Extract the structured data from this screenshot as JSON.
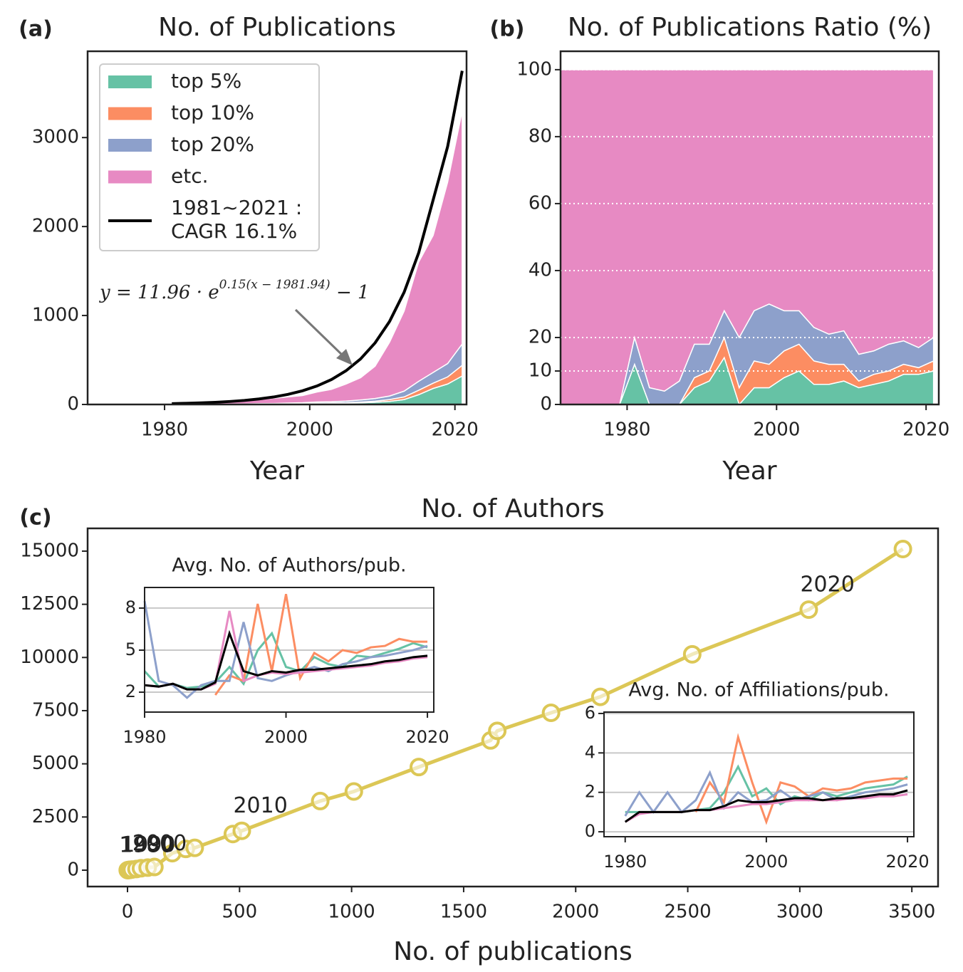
{
  "chart_data": [
    {
      "type": "area",
      "panel_label": "(a)",
      "title": "No. of Publications",
      "xlabel": "Year",
      "x": [
        1981,
        1983,
        1985,
        1987,
        1989,
        1991,
        1993,
        1995,
        1997,
        1999,
        2001,
        2003,
        2005,
        2007,
        2009,
        2011,
        2013,
        2015,
        2017,
        2019,
        2021
      ],
      "series": [
        {
          "name": "top 5%",
          "color": "#66c2a5",
          "values": [
            1,
            0,
            0,
            0,
            1,
            2,
            5,
            2,
            4,
            5,
            8,
            11,
            14,
            18,
            25,
            35,
            55,
            110,
            180,
            230,
            320
          ]
        },
        {
          "name": "top 10%",
          "color": "#fc8d62",
          "values": [
            0,
            0,
            0,
            0,
            1,
            1,
            2,
            3,
            4,
            5,
            6,
            6,
            6,
            9,
            12,
            20,
            30,
            50,
            60,
            80,
            120
          ]
        },
        {
          "name": "top 20%",
          "color": "#8da0cb",
          "values": [
            1,
            1,
            0,
            1,
            2,
            3,
            3,
            6,
            8,
            10,
            14,
            14,
            18,
            24,
            30,
            40,
            65,
            100,
            120,
            150,
            240
          ]
        },
        {
          "name": "etc.",
          "color": "#e78ac3",
          "values": [
            8,
            11,
            15,
            19,
            24,
            34,
            45,
            59,
            69,
            80,
            112,
            139,
            192,
            249,
            363,
            605,
            900,
            1340,
            1540,
            2040,
            2620
          ]
        }
      ],
      "fit": {
        "name_lines": [
          "1981~2021 :",
          "CAGR 16.1%"
        ],
        "color": "#000000",
        "values": [
          9.4,
          13,
          17.9,
          24.5,
          33.5,
          45.5,
          61.8,
          83.8,
          113.5,
          153.5,
          207.6,
          280.6,
          379,
          512,
          692,
          934,
          1261,
          1703,
          2299,
          2900,
          3750
        ]
      },
      "annotation": {
        "base": "y = 11.96 · e",
        "exponent": "0.15(x − 1981.94)",
        "tail": " − 1"
      },
      "legend": "upper left",
      "xlim": [
        1969.4,
        2021.6
      ],
      "ylim": [
        0,
        3970
      ],
      "xticks": [
        1980,
        2000,
        2020
      ],
      "yticks": [
        0,
        1000,
        2000,
        3000
      ]
    },
    {
      "type": "area",
      "panel_label": "(b)",
      "title": "No. of Publications Ratio (%)",
      "xlabel": "Year",
      "x": [
        1971,
        1973,
        1975,
        1977,
        1979,
        1981,
        1983,
        1985,
        1987,
        1989,
        1991,
        1993,
        1995,
        1997,
        1999,
        2001,
        2003,
        2005,
        2007,
        2009,
        2011,
        2013,
        2015,
        2017,
        2019,
        2021
      ],
      "series": [
        {
          "color": "#66c2a5",
          "values": [
            0,
            0,
            0,
            0,
            0,
            12,
            0,
            0,
            0,
            5,
            7,
            14,
            0,
            5,
            5,
            8,
            10,
            6,
            6,
            7,
            5,
            6,
            7,
            9,
            9,
            10
          ]
        },
        {
          "color": "#fc8d62",
          "values": [
            0,
            0,
            0,
            0,
            0,
            0,
            0,
            0,
            0,
            3,
            3,
            6,
            5,
            8,
            7,
            8,
            8,
            7,
            6,
            5,
            2,
            3,
            3,
            3,
            2,
            3
          ]
        },
        {
          "color": "#8da0cb",
          "values": [
            0,
            0,
            0,
            0,
            0,
            8,
            5,
            4,
            7,
            10,
            8,
            8,
            15,
            15,
            18,
            12,
            10,
            10,
            9,
            10,
            8,
            7,
            8,
            7,
            6,
            7
          ]
        },
        {
          "color": "#e78ac3",
          "values": [
            100,
            100,
            100,
            100,
            100,
            80,
            95,
            96,
            93,
            82,
            82,
            72,
            80,
            72,
            70,
            72,
            72,
            77,
            79,
            78,
            85,
            84,
            82,
            81,
            83,
            80
          ]
        }
      ],
      "grid": true,
      "xlim": [
        1971.1,
        2021.7
      ],
      "ylim": [
        0,
        105.5
      ],
      "xticks": [
        1980,
        2000,
        2020
      ],
      "yticks": [
        0,
        10,
        20,
        40,
        60,
        80,
        100
      ]
    },
    {
      "type": "line",
      "panel_label": "(c)",
      "title": "No. of Authors",
      "xlabel": "No. of publications",
      "markers": true,
      "x": [
        1,
        5,
        10,
        20,
        40,
        60,
        90,
        120,
        200,
        260,
        300,
        470,
        510,
        860,
        1010,
        1300,
        1620,
        1650,
        1890,
        2110,
        2520,
        3040,
        3460
      ],
      "series": [
        {
          "color": "#dcc756",
          "values": [
            2,
            8,
            15,
            30,
            55,
            90,
            120,
            150,
            800,
            1000,
            1050,
            1700,
            1850,
            3250,
            3700,
            4850,
            6100,
            6550,
            7400,
            8150,
            10150,
            12250,
            15100
          ]
        }
      ],
      "point_labels": [
        "1980",
        null,
        "1990",
        null,
        null,
        "2000",
        null,
        null,
        null,
        null,
        null,
        null,
        "2010",
        null,
        null,
        null,
        null,
        null,
        null,
        null,
        null,
        "2020",
        null
      ],
      "xlim": [
        -178,
        3617
      ],
      "ylim": [
        -770,
        16070
      ],
      "xticks": [
        0,
        500,
        1000,
        1500,
        2000,
        2500,
        3000,
        3500
      ],
      "yticks": [
        0,
        2500,
        5000,
        7500,
        10000,
        12500,
        15000
      ]
    },
    {
      "type": "line",
      "title": "Avg. No. of Authors/pub.",
      "grid": true,
      "x": [
        1980,
        1982,
        1984,
        1986,
        1988,
        1990,
        1992,
        1994,
        1996,
        1998,
        2000,
        2002,
        2004,
        2006,
        2008,
        2010,
        2012,
        2014,
        2016,
        2018,
        2020
      ],
      "series": [
        {
          "color": "#66c2a5",
          "values": [
            3.5,
            2.4,
            2.6,
            2.3,
            2.4,
            2.7,
            3.8,
            2.6,
            5,
            6.2,
            3.8,
            3.5,
            4.5,
            4,
            3.8,
            4.6,
            4.5,
            4.8,
            5.1,
            5.5,
            5.2
          ]
        },
        {
          "color": "#fc8d62",
          "values": [
            null,
            null,
            null,
            null,
            null,
            1.8,
            3.2,
            2.8,
            8.3,
            3.5,
            9,
            3,
            4.8,
            4.2,
            5,
            4.8,
            5.2,
            5.3,
            5.8,
            5.6,
            5.6
          ]
        },
        {
          "color": "#8da0cb",
          "values": [
            8.5,
            2.8,
            2.5,
            1.6,
            2.5,
            2.8,
            2.8,
            7,
            3,
            2.8,
            3.2,
            3.5,
            3.8,
            3.5,
            4,
            4.2,
            4.5,
            4.6,
            4.8,
            5,
            5.3
          ]
        },
        {
          "color": "#e78ac3",
          "values": [
            2.5,
            2.4,
            2.6,
            2.2,
            2.2,
            2.6,
            7.8,
            2.8,
            3.2,
            3.4,
            3.3,
            3.4,
            3.5,
            3.6,
            3.7,
            3.8,
            3.9,
            4.1,
            4.2,
            4.4,
            4.5
          ]
        },
        {
          "color": "#000000",
          "values": [
            2.5,
            2.4,
            2.6,
            2.2,
            2.2,
            2.7,
            6.2,
            3.5,
            3.2,
            3.5,
            3.4,
            3.6,
            3.6,
            3.7,
            3.8,
            3.9,
            4,
            4.2,
            4.3,
            4.5,
            4.6
          ]
        }
      ],
      "xlim": [
        1980,
        2020.9
      ],
      "ylim": [
        0.58,
        9.47
      ],
      "xticks": [
        1980,
        2000,
        2020
      ],
      "yticks": [
        2,
        5,
        8
      ]
    },
    {
      "type": "line",
      "title": "Avg. No. of Affiliations/pub.",
      "grid": true,
      "x": [
        1980,
        1982,
        1984,
        1986,
        1988,
        1990,
        1992,
        1994,
        1996,
        1998,
        2000,
        2002,
        2004,
        2006,
        2008,
        2010,
        2012,
        2014,
        2016,
        2018,
        2020
      ],
      "series": [
        {
          "color": "#66c2a5",
          "values": [
            1,
            1,
            1,
            1,
            1,
            1.1,
            1.2,
            2,
            3.3,
            1.8,
            2.2,
            1.4,
            1.8,
            1.6,
            2,
            1.8,
            2,
            2.2,
            2.3,
            2.4,
            2.8
          ]
        },
        {
          "color": "#fc8d62",
          "values": [
            null,
            null,
            null,
            null,
            null,
            1,
            2.5,
            1.5,
            4.8,
            2.5,
            0.5,
            2.5,
            2.3,
            1.8,
            2.2,
            2.1,
            2.2,
            2.5,
            2.6,
            2.7,
            2.7
          ]
        },
        {
          "color": "#8da0cb",
          "values": [
            0.8,
            2,
            1,
            2,
            1,
            1.6,
            3,
            1.2,
            2,
            1.5,
            1.6,
            2.1,
            1.6,
            1.8,
            2,
            1.6,
            1.8,
            2,
            2.1,
            2.2,
            2.4
          ]
        },
        {
          "color": "#e78ac3",
          "values": [
            0.5,
            0.9,
            1,
            1,
            1,
            1.1,
            1.1,
            1.2,
            1.3,
            1.4,
            1.4,
            1.5,
            1.6,
            1.6,
            1.6,
            1.6,
            1.7,
            1.7,
            1.8,
            1.8,
            1.9
          ]
        },
        {
          "color": "#000000",
          "values": [
            0.5,
            1,
            1,
            1,
            1,
            1.1,
            1.1,
            1.3,
            1.6,
            1.5,
            1.5,
            1.6,
            1.7,
            1.7,
            1.6,
            1.7,
            1.7,
            1.8,
            1.9,
            1.9,
            2.1
          ]
        }
      ],
      "xlim": [
        1977,
        2020.9
      ],
      "ylim": [
        -0.25,
        6.07
      ],
      "xticks": [
        1980,
        2000,
        2020
      ],
      "yticks": [
        0,
        2,
        4,
        6
      ]
    }
  ]
}
